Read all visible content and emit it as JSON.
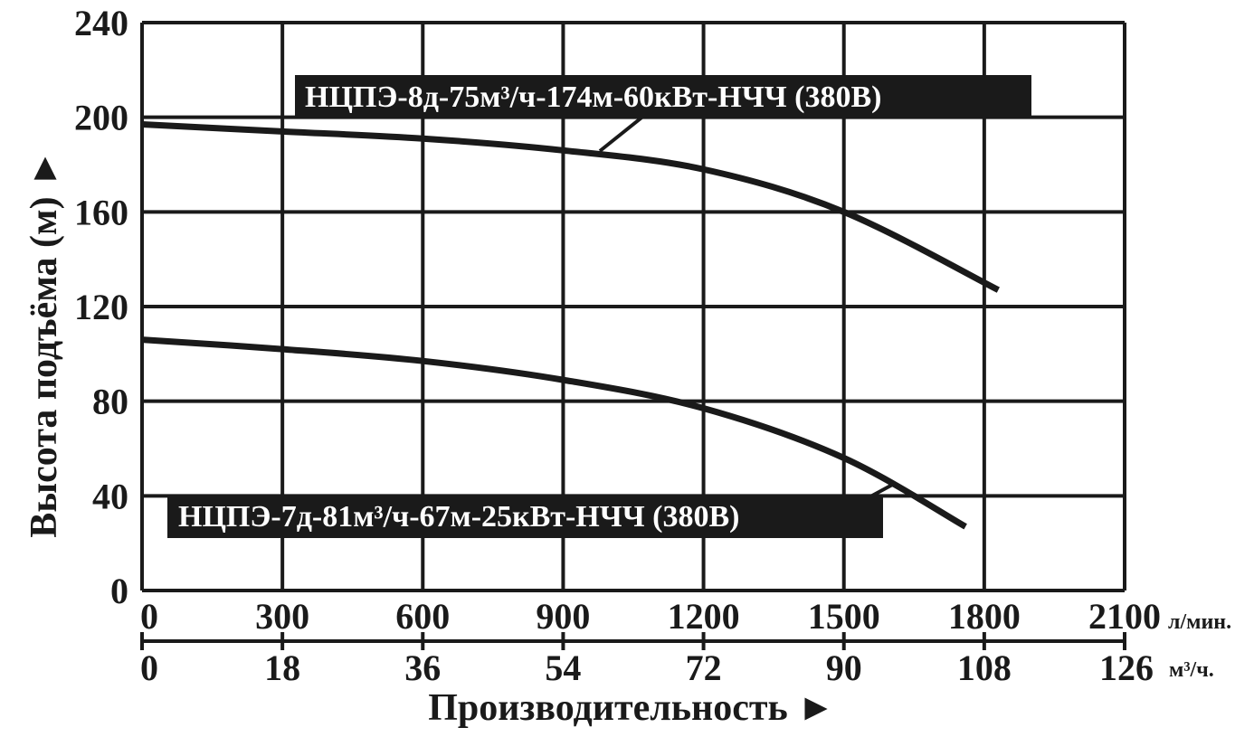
{
  "chart_data": {
    "type": "line",
    "title": "",
    "ylabel": "Высота подъёма (м) ►",
    "xlabel": "Производительность ►",
    "ylim": [
      0,
      240
    ],
    "yticks": [
      "240",
      "200",
      "160",
      "120",
      "80",
      "40",
      "0"
    ],
    "x_primary": {
      "unit": "л/мин.",
      "lim": [
        0,
        2100
      ],
      "ticks": [
        "0",
        "300",
        "600",
        "900",
        "1200",
        "1500",
        "1800",
        "2100"
      ]
    },
    "x_secondary": {
      "unit": "м³/ч.",
      "lim": [
        0,
        126
      ],
      "ticks": [
        "0",
        "18",
        "36",
        "54",
        "72",
        "90",
        "108",
        "126"
      ]
    },
    "grid": true,
    "series": [
      {
        "name": "НЦПЭ-8д-75м³/ч-174м-60кВт-НЧЧ (380В)",
        "x": [
          0,
          300,
          600,
          900,
          1200,
          1500,
          1830
        ],
        "y": [
          197,
          194,
          191,
          186,
          178,
          160,
          127
        ]
      },
      {
        "name": "НЦПЭ-7д-81м³/ч-67м-25кВт-НЧЧ (380В)",
        "x": [
          0,
          300,
          600,
          900,
          1200,
          1500,
          1760
        ],
        "y": [
          106,
          102,
          97,
          89,
          77,
          56,
          27
        ]
      }
    ]
  }
}
